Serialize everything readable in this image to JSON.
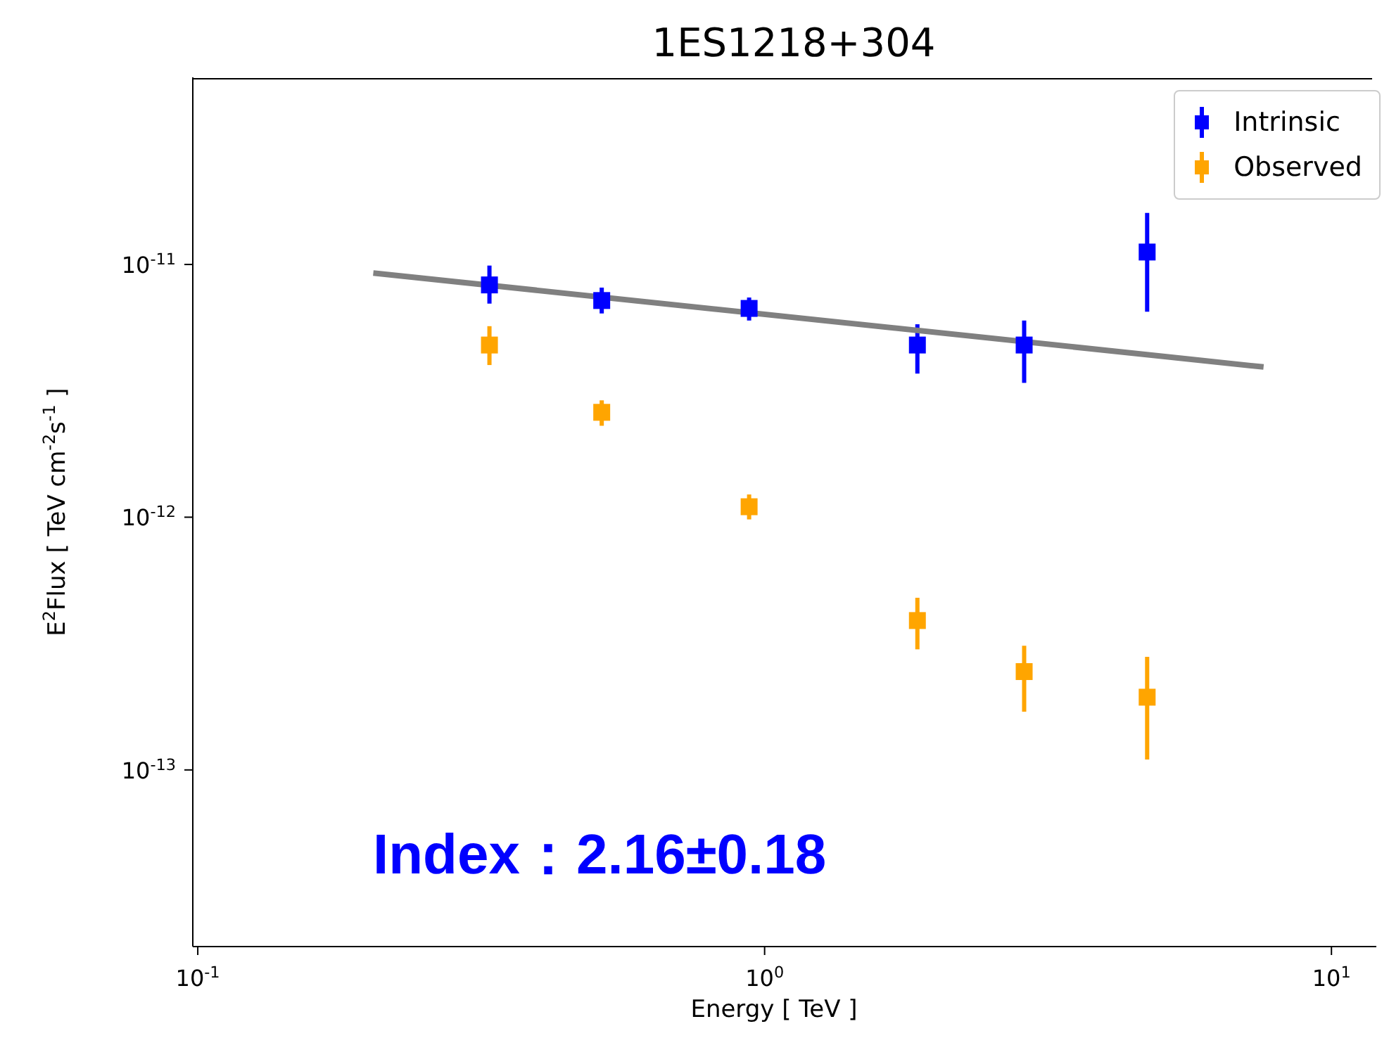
{
  "chart_data": {
    "type": "scatter",
    "title": "1ES1218+304",
    "xlabel": "Energy [ TeV ]",
    "ylabel": "E$^{2}$Flux [ TeV cm$^{-2}$s$^{-1}$ ]",
    "log": "xy",
    "xlim": [
      0.098,
      12
    ],
    "ylim": [
      2e-14,
      5.5e-11
    ],
    "xticks": [
      {
        "value": 0.1,
        "label": "10$^{-1}$"
      },
      {
        "value": 1,
        "label": "10$^{0}$"
      },
      {
        "value": 10,
        "label": "10$^{1}$"
      }
    ],
    "yticks": [
      {
        "value": 1e-13,
        "label": "10$^{-13}$"
      },
      {
        "value": 1e-12,
        "label": "10$^{-12}$"
      },
      {
        "value": 1e-11,
        "label": "10$^{-11}$"
      }
    ],
    "legend": "top right",
    "marker": "square",
    "annotations": [
      "Index：2.16±0.18"
    ],
    "series": [
      {
        "type": "line",
        "marker": "none",
        "color": "#808080",
        "x": [
          0.204,
          7.59
        ],
        "values": [
          9.25e-12,
          3.93e-12
        ]
      },
      {
        "name": "Intrinsic",
        "color": "#0000ff",
        "x": [
          0.327,
          0.516,
          0.939,
          1.86,
          2.87,
          4.73
        ],
        "values": [
          8.3e-12,
          7.2e-12,
          6.7e-12,
          4.8e-12,
          4.8e-12,
          1.12e-11
        ],
        "errors": [
          [
            7e-12,
            9.9e-12
          ],
          [
            6.4e-12,
            8.1e-12
          ],
          [
            6e-12,
            7.4e-12
          ],
          [
            3.7e-12,
            5.8e-12
          ],
          [
            3.4e-12,
            6e-12
          ],
          [
            6.5e-12,
            1.6e-11
          ]
        ]
      },
      {
        "name": "Observed",
        "color": "#ffa500",
        "x": [
          0.327,
          0.516,
          0.939,
          1.86,
          2.87,
          4.73
        ],
        "values": [
          4.8e-12,
          2.6e-12,
          1.1e-12,
          3.9e-13,
          2.45e-13,
          1.94e-13
        ],
        "errors": [
          [
            4e-12,
            5.7e-12
          ],
          [
            2.3e-12,
            2.9e-12
          ],
          [
            9.8e-13,
            1.23e-12
          ],
          [
            3e-13,
            4.8e-13
          ],
          [
            1.7e-13,
            3.1e-13
          ],
          [
            1.1e-13,
            2.8e-13
          ]
        ]
      }
    ]
  }
}
